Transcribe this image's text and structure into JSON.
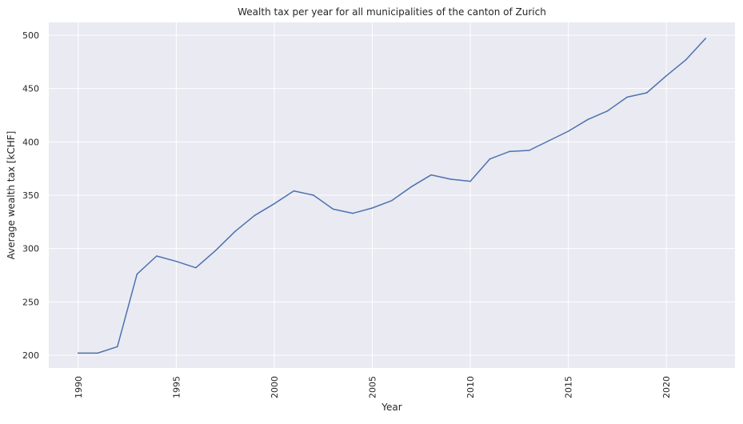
{
  "chart_data": {
    "type": "line",
    "title": "Wealth tax per year for all municipalities of the canton of Zurich",
    "xlabel": "Year",
    "ylabel": "Average wealth tax [kCHF]",
    "xlim": [
      1988.5,
      2023.5
    ],
    "ylim": [
      188,
      512
    ],
    "x_ticks": [
      1990,
      1995,
      2000,
      2005,
      2010,
      2015,
      2020
    ],
    "y_ticks": [
      200,
      250,
      300,
      350,
      400,
      450,
      500
    ],
    "grid": true,
    "legend": "none",
    "colors": {
      "background": "#eaeaf2",
      "grid": "#ffffff",
      "line": "#4c72b0"
    },
    "series": [
      {
        "x": [
          1990,
          1991,
          1992,
          1993,
          1994,
          1995,
          1996,
          1997,
          1998,
          1999,
          2000,
          2001,
          2002,
          2003,
          2004,
          2005,
          2006,
          2007,
          2008,
          2009,
          2010,
          2011,
          2012,
          2013,
          2014,
          2015,
          2016,
          2017,
          2018,
          2019,
          2020,
          2021,
          2022
        ],
        "values": [
          202,
          202,
          208,
          276,
          293,
          288,
          282,
          298,
          316,
          331,
          342,
          354,
          350,
          337,
          333,
          338,
          345,
          358,
          369,
          365,
          363,
          384,
          391,
          392,
          401,
          410,
          421,
          429,
          442,
          446,
          462,
          477,
          497
        ]
      }
    ]
  }
}
